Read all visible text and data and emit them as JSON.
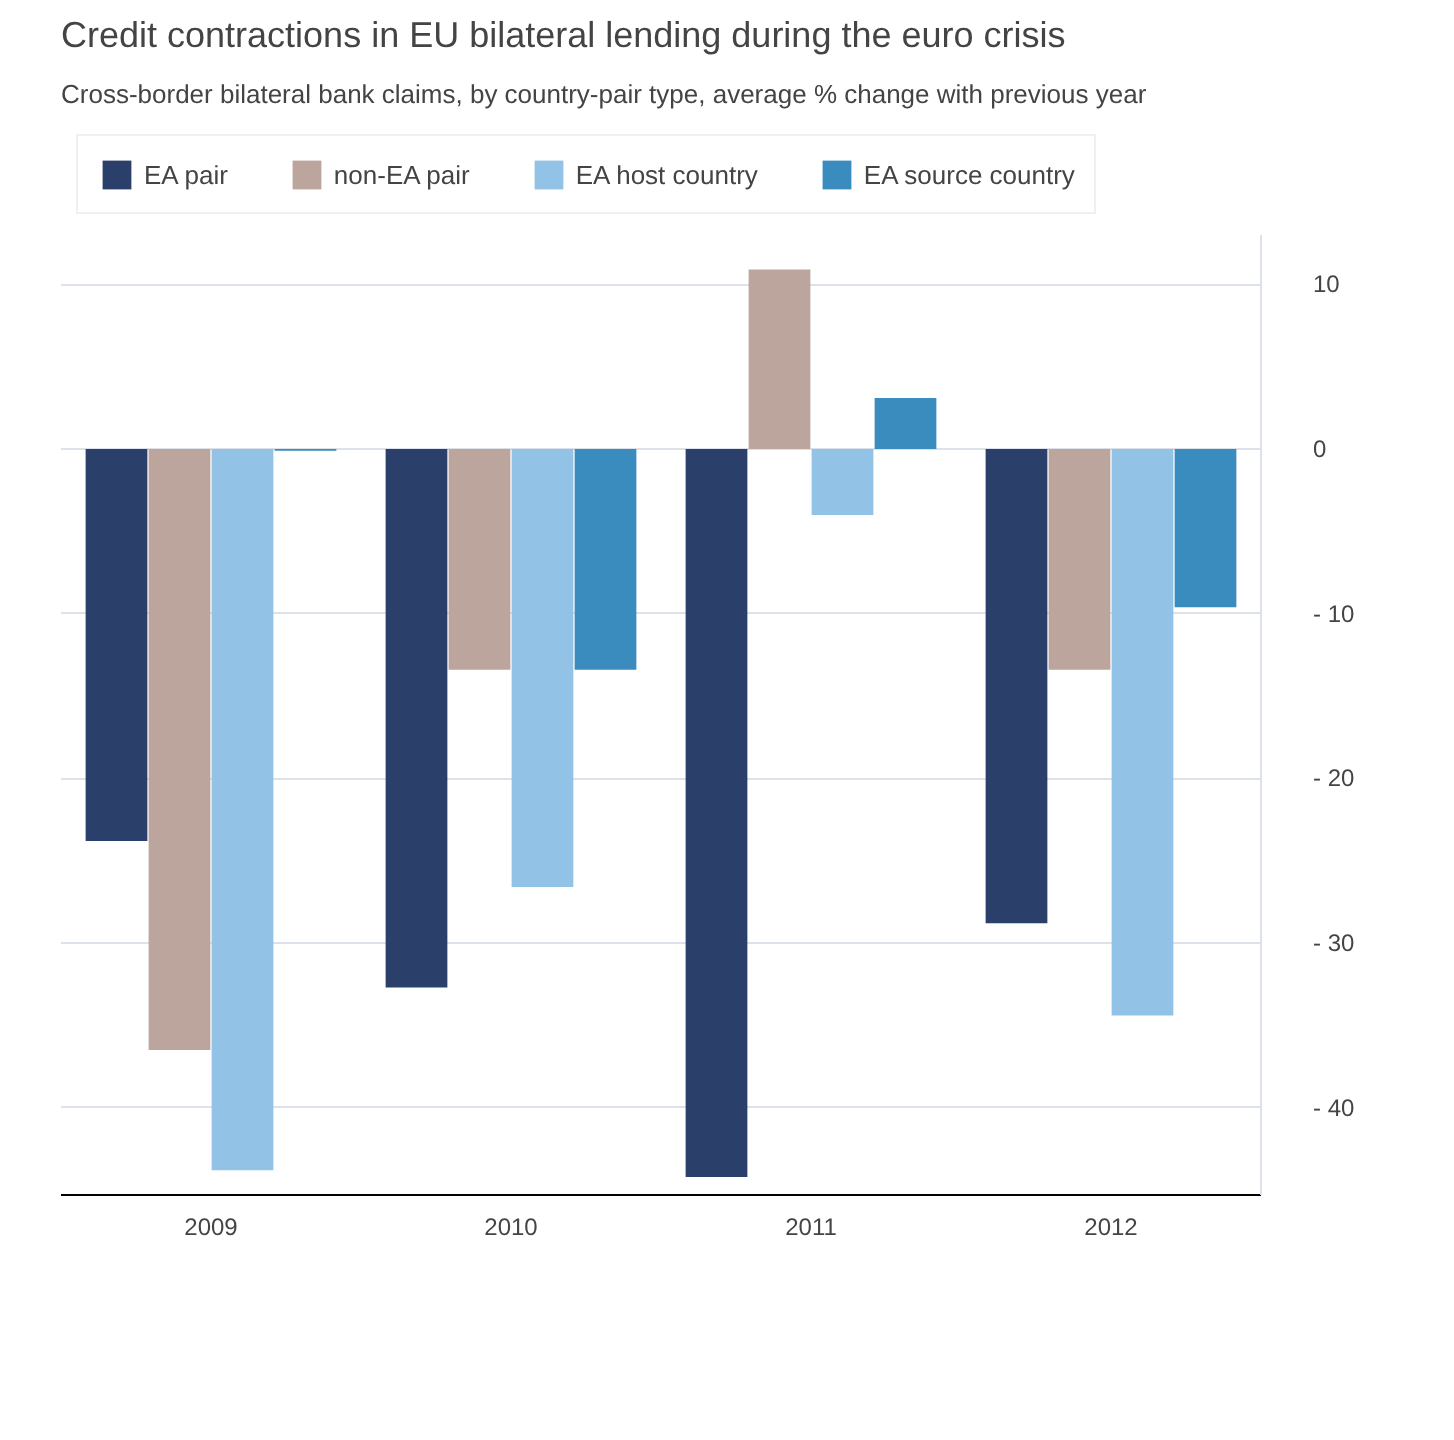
{
  "chart_data": {
    "type": "bar",
    "title": "Credit contractions in EU bilateral lending during the euro crisis",
    "subtitle": "Cross-border bilateral bank claims, by country-pair type, average % change with previous year",
    "categories": [
      "2009",
      "2010",
      "2011",
      "2012"
    ],
    "series": [
      {
        "name": "EA pair",
        "color": "#2b3f6b",
        "values": [
          -23.8,
          -32.7,
          -44.2,
          -28.8
        ]
      },
      {
        "name": "non-EA pair",
        "color": "#bba59d",
        "values": [
          -36.5,
          -13.4,
          10.9,
          -13.4
        ]
      },
      {
        "name": "EA host country",
        "color": "#92c2e6",
        "values": [
          -43.8,
          -26.6,
          -4.0,
          -34.4
        ]
      },
      {
        "name": "EA source country",
        "color": "#3a8cbf",
        "values": [
          -0.1,
          -13.4,
          3.1,
          -9.6
        ]
      }
    ],
    "ylim": [
      -45.3,
      13
    ],
    "yticks": [
      {
        "value": -40,
        "label": "- 40"
      },
      {
        "value": -30,
        "label": "- 30"
      },
      {
        "value": -20,
        "label": "- 20"
      },
      {
        "value": -10,
        "label": "- 10"
      },
      0,
      10
    ],
    "grid": "y",
    "legend": "top"
  }
}
